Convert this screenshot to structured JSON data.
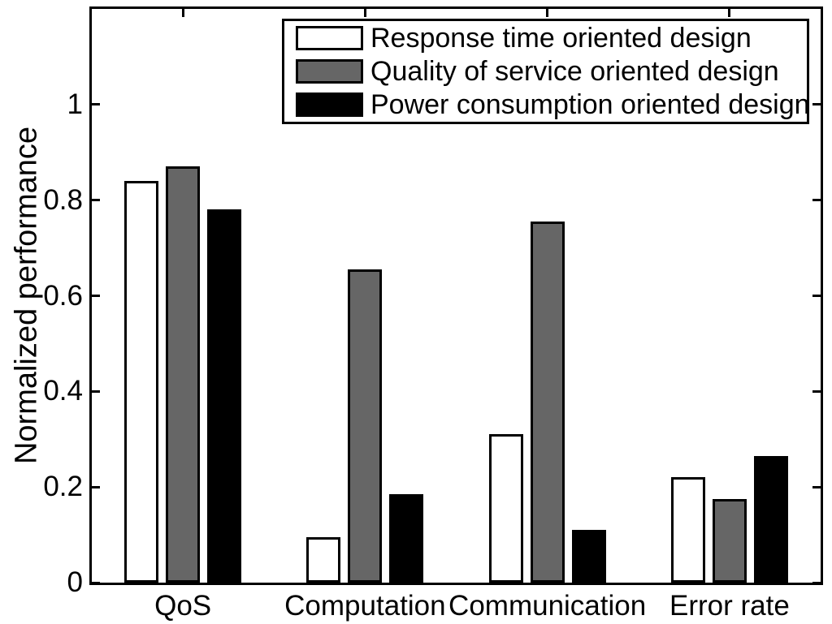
{
  "chart_data": {
    "type": "bar",
    "title": "",
    "xlabel": "",
    "ylabel": "Normalized performance",
    "categories": [
      "QoS",
      "Computation",
      "Communication",
      "Error rate"
    ],
    "series": [
      {
        "name": "Response time oriented design",
        "color": "#ffffff",
        "values": [
          0.84,
          0.095,
          0.31,
          0.22
        ]
      },
      {
        "name": "Quality of service oriented design",
        "color": "#666666",
        "values": [
          0.87,
          0.655,
          0.755,
          0.175
        ]
      },
      {
        "name": "Power consumption oriented design",
        "color": "#000000",
        "values": [
          0.78,
          0.185,
          0.11,
          0.265
        ]
      }
    ],
    "ylim": [
      0,
      1.2
    ],
    "yticks": [
      0,
      0.2,
      0.4,
      0.6,
      0.8,
      1
    ],
    "ytick_labels": [
      "0",
      "0.2",
      "0.4",
      "0.6",
      "0.8",
      "1"
    ],
    "grid": false,
    "legend_position": "top-right-inside",
    "axis_color": "#000000",
    "bar_edge_color": "#000000",
    "background": "#ffffff"
  }
}
